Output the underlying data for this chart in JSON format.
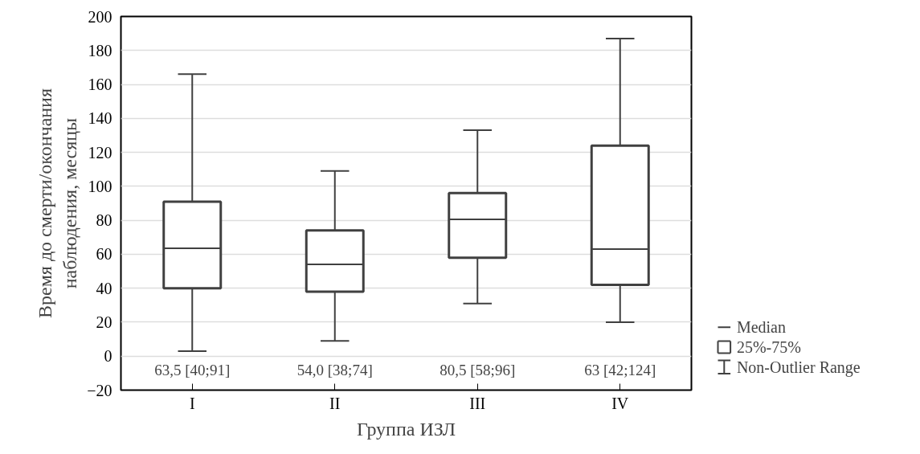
{
  "chart_data": {
    "type": "box",
    "xlabel": "Группа ИЗЛ",
    "ylabel": "Время до смерти/окончания наблюдения, месяцы",
    "categories": [
      "I",
      "II",
      "III",
      "IV"
    ],
    "series": [
      {
        "color": "#404040",
        "boxes": [
          {
            "low": 3,
            "q1": 40,
            "median": 63.5,
            "q3": 91,
            "high": 166
          },
          {
            "low": 9,
            "q1": 38,
            "median": 54,
            "q3": 74,
            "high": 109
          },
          {
            "low": 31,
            "q1": 58,
            "median": 80.5,
            "q3": 96,
            "high": 133
          },
          {
            "low": 20,
            "q1": 42,
            "median": 63,
            "q3": 124,
            "high": 187
          }
        ],
        "value_labels": [
          "63,5 [40;91]",
          "54,0 [38;74]",
          "80,5 [58;96]",
          "63 [42;124]"
        ]
      }
    ],
    "ylim": [
      -20,
      200
    ],
    "yticks": [
      -20,
      0,
      20,
      40,
      60,
      80,
      100,
      120,
      140,
      160,
      180,
      200
    ],
    "grid": "y",
    "annotations": [
      "Median",
      "25%-75%",
      "Non-Outlier Range"
    ]
  }
}
